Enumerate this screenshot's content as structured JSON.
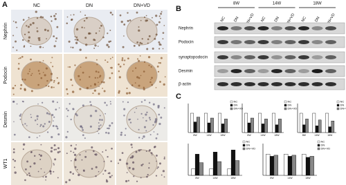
{
  "panel_a": {
    "label": "A",
    "columns": [
      "NC",
      "DN",
      "DN+VD"
    ],
    "rows": [
      "Nephrin",
      "Podocin",
      "Desmin",
      "WT1"
    ]
  },
  "panel_b": {
    "label": "B",
    "groups": [
      "8W",
      "14W",
      "18W"
    ],
    "lanes": [
      "NC",
      "DN",
      "DN+VD",
      "NC",
      "DN",
      "DN+VD",
      "NC",
      "DN",
      "DN+VD"
    ],
    "proteins": [
      "Nephrin",
      "Podocin",
      "synaptopodocin",
      "Desmin",
      "β-actin"
    ]
  },
  "panel_c": {
    "label": "C",
    "charts": [
      {
        "type": "bar",
        "categories": [
          "8W",
          "14W",
          "18W"
        ],
        "ylim": [
          0,
          1.5
        ],
        "legend": "upper right",
        "series": [
          {
            "name": "NC",
            "color": "#ffffff",
            "values": [
              1.0,
              1.0,
              1.0
            ]
          },
          {
            "name": "DN",
            "color": "#111111",
            "values": [
              0.55,
              0.5,
              0.45
            ]
          },
          {
            "name": "DN+VD",
            "color": "#888888",
            "values": [
              0.8,
              0.75,
              0.7
            ]
          }
        ]
      },
      {
        "type": "bar",
        "categories": [
          "8W",
          "14W",
          "18W"
        ],
        "ylim": [
          0,
          1.5
        ],
        "legend": "upper right",
        "series": [
          {
            "name": "NC",
            "color": "#ffffff",
            "values": [
              1.0,
              1.0,
              1.0
            ]
          },
          {
            "name": "DN",
            "color": "#111111",
            "values": [
              0.5,
              0.45,
              0.4
            ]
          },
          {
            "name": "DN+VD",
            "color": "#888888",
            "values": [
              0.75,
              0.7,
              0.7
            ]
          }
        ]
      },
      {
        "type": "bar",
        "categories": [
          "8W",
          "14W",
          "18W"
        ],
        "ylim": [
          0,
          1.5
        ],
        "legend": "upper right",
        "series": [
          {
            "name": "NC",
            "color": "#ffffff",
            "values": [
              1.0,
              1.0,
              1.0
            ]
          },
          {
            "name": "DN",
            "color": "#111111",
            "values": [
              0.4,
              0.35,
              0.3
            ]
          },
          {
            "name": "DN+VD",
            "color": "#888888",
            "values": [
              0.7,
              0.65,
              0.6
            ]
          }
        ]
      },
      {
        "type": "bar",
        "categories": [
          "8W",
          "14W",
          "18W"
        ],
        "ylim": [
          0,
          1.5
        ],
        "legend": "upper right",
        "series": [
          {
            "name": "NC",
            "color": "#ffffff",
            "values": [
              0.3,
              0.3,
              0.3
            ]
          },
          {
            "name": "DN",
            "color": "#111111",
            "values": [
              1.0,
              1.1,
              1.2
            ]
          },
          {
            "name": "DN+VD",
            "color": "#888888",
            "values": [
              0.6,
              0.65,
              0.7
            ]
          }
        ]
      },
      {
        "type": "bar",
        "categories": [
          "8W",
          "14W",
          "18W"
        ],
        "ylim": [
          0,
          1.5
        ],
        "legend": "upper right",
        "series": [
          {
            "name": "NC",
            "color": "#ffffff",
            "values": [
              1.0,
              1.0,
              1.0
            ]
          },
          {
            "name": "DN",
            "color": "#111111",
            "values": [
              0.9,
              0.9,
              0.85
            ]
          },
          {
            "name": "DN+VD",
            "color": "#888888",
            "values": [
              0.95,
              0.95,
              0.9
            ]
          }
        ]
      }
    ]
  }
}
